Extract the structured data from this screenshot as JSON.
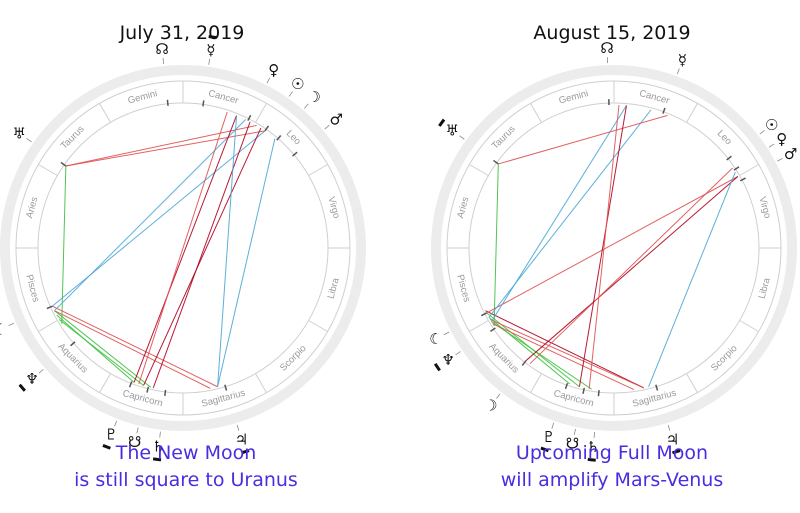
{
  "colors": {
    "ring": "#ececec",
    "ring_border": "#cfcfcf",
    "aspect_red": "#e05050",
    "aspect_darkred": "#b00020",
    "aspect_blue": "#4aa6d6",
    "aspect_green": "#3cc03c",
    "caption": "#4a2de0"
  },
  "signs": [
    "Aries",
    "Taurus",
    "Gemini",
    "Cancer",
    "Leo",
    "Virgo",
    "Libra",
    "Scorpio",
    "Sagittarius",
    "Capricorn",
    "Aquarius",
    "Pisces"
  ],
  "charts": [
    {
      "title": "July 31, 2019",
      "caption": [
        "The New Moon",
        "is still square to Uranus"
      ],
      "planets": [
        {
          "name": "moon",
          "glyph": "☾",
          "lon": 336,
          "bar": false
        },
        {
          "name": "neptune",
          "glyph": "♆",
          "lon": 319,
          "bar": true
        },
        {
          "name": "pluto",
          "glyph": "♇",
          "lon": 291,
          "bar": true
        },
        {
          "name": "south-node",
          "glyph": "☋",
          "lon": 284,
          "bar": false
        },
        {
          "name": "saturn",
          "glyph": "♄",
          "lon": 277,
          "bar": true
        },
        {
          "name": "jupiter",
          "glyph": "♃",
          "lon": 253,
          "bar": true
        },
        {
          "name": "mars",
          "glyph": "♂",
          "lon": 140,
          "bar": false
        },
        {
          "name": "moon-2",
          "glyph": "☽",
          "lon": 131,
          "bar": false
        },
        {
          "name": "sun",
          "glyph": "☉",
          "lon": 125,
          "bar": false
        },
        {
          "name": "venus",
          "glyph": "♀",
          "lon": 117,
          "bar": false
        },
        {
          "name": "mercury",
          "glyph": "☿",
          "lon": 98,
          "bar": true
        },
        {
          "name": "north-node",
          "glyph": "☊",
          "lon": 84,
          "bar": false
        },
        {
          "name": "uranus",
          "glyph": "♅",
          "lon": 35,
          "bar": false
        }
      ],
      "aspects": [
        {
          "a": 334,
          "b": 283,
          "color": "aspect_green"
        },
        {
          "a": 332,
          "b": 290,
          "color": "aspect_green"
        },
        {
          "a": 330,
          "b": 286,
          "color": "aspect_green"
        },
        {
          "a": 328,
          "b": 35,
          "color": "aspect_green"
        },
        {
          "a": 336,
          "b": 256,
          "color": "aspect_red"
        },
        {
          "a": 334,
          "b": 259,
          "color": "aspect_red"
        },
        {
          "a": 336,
          "b": 125,
          "color": "aspect_blue"
        },
        {
          "a": 334,
          "b": 116,
          "color": "aspect_blue"
        },
        {
          "a": 35,
          "b": 125,
          "color": "aspect_red"
        },
        {
          "a": 35,
          "b": 121,
          "color": "aspect_red"
        },
        {
          "a": 286,
          "b": 123,
          "color": "aspect_darkred"
        },
        {
          "a": 282,
          "b": 118,
          "color": "aspect_darkred"
        },
        {
          "a": 290,
          "b": 112,
          "color": "aspect_darkred"
        },
        {
          "a": 288,
          "b": 108,
          "color": "aspect_red"
        },
        {
          "a": 256,
          "b": 130,
          "color": "aspect_blue"
        },
        {
          "a": 256,
          "b": 112,
          "color": "aspect_blue"
        }
      ]
    },
    {
      "title": "August 15, 2019",
      "caption": [
        "Upcoming Full Moon",
        "will amplify Mars-Venus"
      ],
      "planets": [
        {
          "name": "moon-2",
          "glyph": "☽",
          "lon": 308,
          "bar": false
        },
        {
          "name": "moon",
          "glyph": "☾",
          "lon": 333,
          "bar": false
        },
        {
          "name": "neptune",
          "glyph": "♆",
          "lon": 326,
          "bar": true
        },
        {
          "name": "pluto",
          "glyph": "♇",
          "lon": 289,
          "bar": true
        },
        {
          "name": "south-node",
          "glyph": "☋",
          "lon": 282,
          "bar": false
        },
        {
          "name": "saturn",
          "glyph": "♄",
          "lon": 276,
          "bar": true
        },
        {
          "name": "jupiter",
          "glyph": "♃",
          "lon": 253,
          "bar": true
        },
        {
          "name": "mars",
          "glyph": "♂",
          "lon": 152,
          "bar": false
        },
        {
          "name": "venus",
          "glyph": "♀",
          "lon": 147,
          "bar": false
        },
        {
          "name": "sun",
          "glyph": "☉",
          "lon": 142,
          "bar": false
        },
        {
          "name": "mercury",
          "glyph": "☿",
          "lon": 110,
          "bar": false
        },
        {
          "name": "north-node",
          "glyph": "☊",
          "lon": 88,
          "bar": false
        },
        {
          "name": "uranus",
          "glyph": "♅",
          "lon": 36,
          "bar": true
        }
      ],
      "aspects": [
        {
          "a": 333,
          "b": 284,
          "color": "aspect_green"
        },
        {
          "a": 331,
          "b": 288,
          "color": "aspect_green"
        },
        {
          "a": 329,
          "b": 279,
          "color": "aspect_green"
        },
        {
          "a": 327,
          "b": 36,
          "color": "aspect_green"
        },
        {
          "a": 334,
          "b": 258,
          "color": "aspect_darkred"
        },
        {
          "a": 330,
          "b": 258,
          "color": "aspect_red"
        },
        {
          "a": 328,
          "b": 262,
          "color": "aspect_red"
        },
        {
          "a": 333,
          "b": 150,
          "color": "aspect_red"
        },
        {
          "a": 308,
          "b": 150,
          "color": "aspect_darkred"
        },
        {
          "a": 306,
          "b": 146,
          "color": "aspect_red"
        },
        {
          "a": 331,
          "b": 105,
          "color": "aspect_blue"
        },
        {
          "a": 329,
          "b": 95,
          "color": "aspect_blue"
        },
        {
          "a": 36,
          "b": 112,
          "color": "aspect_red"
        },
        {
          "a": 284,
          "b": 95,
          "color": "aspect_darkred"
        },
        {
          "a": 280,
          "b": 92,
          "color": "aspect_red"
        },
        {
          "a": 256,
          "b": 148,
          "color": "aspect_blue"
        }
      ]
    }
  ]
}
